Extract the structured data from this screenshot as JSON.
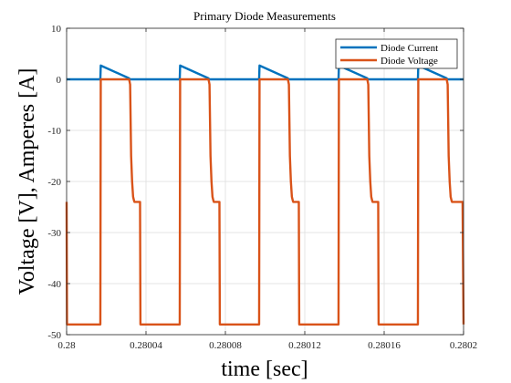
{
  "chart_data": {
    "type": "line",
    "title": "Primary Diode Measurements",
    "xlabel": "time [sec]",
    "ylabel": "Voltage [V], Amperes [A]",
    "xlim": [
      0.28,
      0.2802
    ],
    "ylim": [
      -50,
      10
    ],
    "grid": true,
    "legend_position": "top-right",
    "x_ticks": [
      0.28,
      0.28004,
      0.28008,
      0.28012,
      0.28016,
      0.2802
    ],
    "x_tick_labels": [
      "0.28",
      "0.28004",
      "0.28008",
      "0.28012",
      "0.28016",
      "0.2802"
    ],
    "y_ticks": [
      10,
      0,
      -10,
      -20,
      -30,
      -40,
      -50
    ],
    "y_tick_labels": [
      "10",
      "0",
      "-10",
      "-20",
      "-30",
      "-40",
      "-50"
    ],
    "series": [
      {
        "name": "Diode Current",
        "color": "#0072BD",
        "x": [
          0.28,
          0.280017,
          0.2800172,
          0.2800315,
          0.2800316,
          0.280057,
          0.2800572,
          0.2800715,
          0.2800716,
          0.280097,
          0.2800972,
          0.2801115,
          0.2801116,
          0.280137,
          0.2801372,
          0.2801515,
          0.2801516,
          0.280177,
          0.2801772,
          0.2801915,
          0.2801916,
          0.2802
        ],
        "y": [
          0,
          0,
          2.7,
          0.2,
          0,
          0,
          2.7,
          0.2,
          0,
          0,
          2.7,
          0.2,
          0,
          0,
          2.7,
          0.2,
          0,
          0,
          2.7,
          0.2,
          0,
          0
        ]
      },
      {
        "name": "Diode Voltage",
        "color": "#D95319",
        "x": [
          0.28,
          0.2800002,
          0.2800004,
          0.280017,
          0.2800172,
          0.2800315,
          0.280032,
          0.2800325,
          0.280033,
          0.2800335,
          0.280034,
          0.2800342,
          0.280037,
          0.2800372,
          0.280057,
          0.2800572,
          0.2800715,
          0.280072,
          0.2800725,
          0.280073,
          0.2800735,
          0.280074,
          0.2800742,
          0.280077,
          0.2800772,
          0.280097,
          0.2800972,
          0.2801115,
          0.280112,
          0.2801125,
          0.280113,
          0.2801135,
          0.280114,
          0.2801142,
          0.280117,
          0.2801172,
          0.280137,
          0.2801372,
          0.2801515,
          0.280152,
          0.2801525,
          0.280153,
          0.2801535,
          0.280154,
          0.2801542,
          0.280157,
          0.2801572,
          0.280177,
          0.2801772,
          0.2801915,
          0.280192,
          0.2801925,
          0.280193,
          0.2801935,
          0.280194,
          0.2801942,
          0.2801995,
          0.2802
        ],
        "y": [
          -24,
          -48,
          -48,
          -48,
          0,
          0,
          -1,
          -15,
          -20,
          -23,
          -23.8,
          -24,
          -24,
          -48,
          -48,
          0,
          0,
          -1,
          -15,
          -20,
          -23,
          -23.8,
          -24,
          -24,
          -48,
          -48,
          0,
          0,
          -1,
          -15,
          -20,
          -23,
          -23.8,
          -24,
          -24,
          -48,
          -48,
          0,
          0,
          -1,
          -15,
          -20,
          -23,
          -23.8,
          -24,
          -24,
          -48,
          -48,
          0,
          0,
          -1,
          -15,
          -20,
          -23,
          -23.8,
          -24,
          -24,
          -48
        ]
      }
    ]
  }
}
